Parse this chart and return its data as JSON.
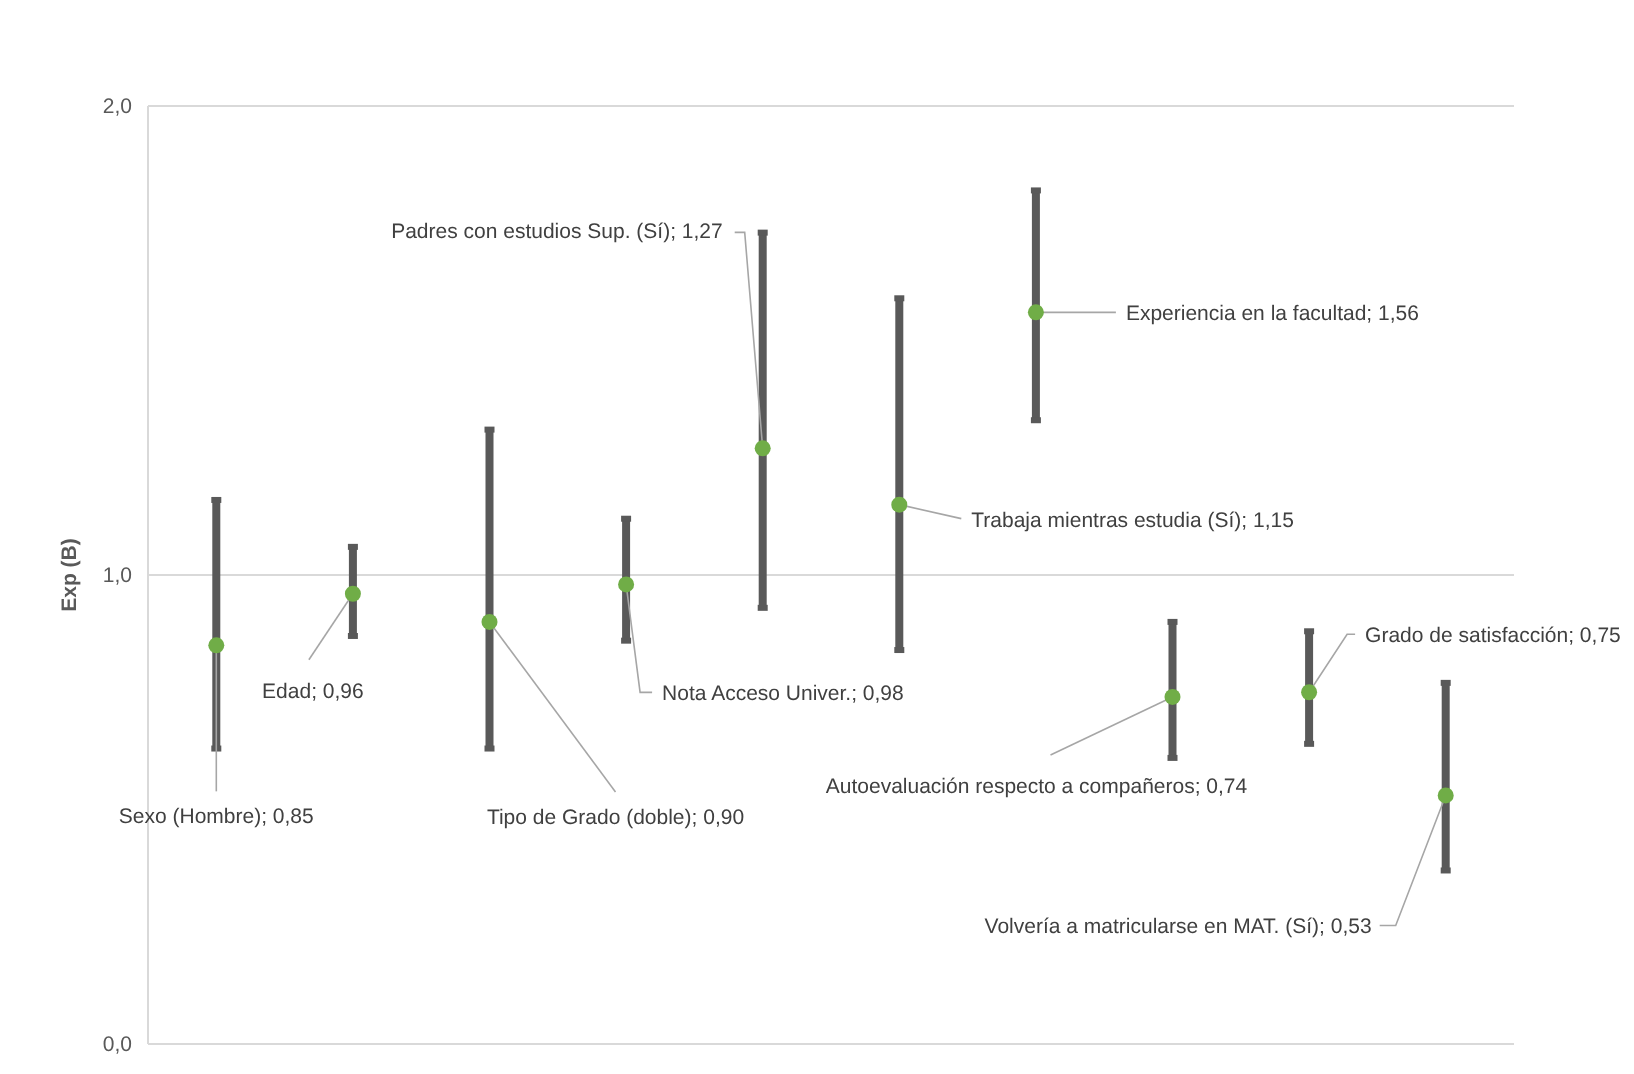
{
  "chart_data": {
    "type": "scatter",
    "ylabel": "Exp (B)",
    "categories": [
      null,
      null,
      null,
      null,
      null,
      null,
      null,
      null,
      null,
      null
    ],
    "series": [
      {
        "color": "#70ad47",
        "values": [
          0.85,
          0.96,
          0.9,
          0.98,
          1.27,
          1.15,
          1.56,
          0.74,
          0.75,
          0.53
        ],
        "errors": [
          [
            0.63,
            1.16
          ],
          [
            0.87,
            1.06
          ],
          [
            0.63,
            1.31
          ],
          [
            0.86,
            1.12
          ],
          [
            0.93,
            1.73
          ],
          [
            0.84,
            1.59
          ],
          [
            1.33,
            1.82
          ],
          [
            0.61,
            0.9
          ],
          [
            0.64,
            0.88
          ],
          [
            0.37,
            0.77
          ]
        ],
        "value_labels": [
          "Sexo (Hombre); 0,85",
          "Edad; 0,96",
          "Tipo de Grado (doble); 0,90",
          "Nota Acceso Univer.; 0,98",
          "Padres con estudios Sup. (Sí); 1,27",
          "Trabaja mientras estudia (Sí); 1,15",
          "Experiencia en la facultad; 1,56",
          "Autoevaluación respecto a compañeros; 0,74",
          "Grado de satisfacción; 0,75",
          "Volvería a matricularse en MAT. (Sí); 0,53"
        ]
      }
    ],
    "ylim": [
      0,
      2
    ],
    "yticks": [
      {
        "value": 0,
        "label": "0,0"
      },
      {
        "value": 1,
        "label": "1,0"
      },
      {
        "value": 2,
        "label": "2,0"
      }
    ],
    "grid": "y",
    "marker": "circle"
  }
}
